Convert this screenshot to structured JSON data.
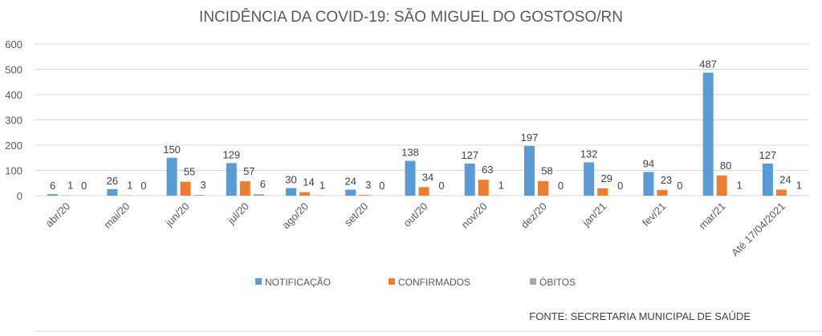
{
  "chart_data": {
    "type": "bar",
    "title": "INCIDÊNCIA DA COVID-19: SÃO MIGUEL DO GOSTOSO/RN",
    "xlabel": "",
    "ylabel": "",
    "ylim": [
      0,
      600
    ],
    "yticks": [
      "0",
      "100",
      "200",
      "300",
      "400",
      "500",
      "600"
    ],
    "ytick_values": [
      0,
      100,
      200,
      300,
      400,
      500,
      600
    ],
    "grid": true,
    "legend_position": "bottom",
    "categories": [
      "abr/20",
      "mai/20",
      "jun/20",
      "jul/20",
      "ago/20",
      "set/20",
      "out/20",
      "nov/20",
      "dez/20",
      "jan/21",
      "fev/21",
      "mar/21",
      "Até 17/04/2021"
    ],
    "series": [
      {
        "name": "NOTIFICAÇÃO",
        "color": "#5B9BD5",
        "values": [
          6,
          26,
          150,
          129,
          30,
          24,
          138,
          127,
          197,
          132,
          94,
          487,
          127
        ]
      },
      {
        "name": "CONFIRMADOS",
        "color": "#ED7D31",
        "values": [
          1,
          1,
          55,
          57,
          14,
          3,
          34,
          63,
          58,
          29,
          23,
          80,
          24
        ]
      },
      {
        "name": "ÓBITOS",
        "color": "#A5A5A5",
        "values": [
          0,
          0,
          3,
          6,
          1,
          0,
          0,
          1,
          0,
          0,
          0,
          1,
          1
        ]
      }
    ],
    "source": "FONTE: SECRETARIA MUNICIPAL DE SAÚDE"
  }
}
